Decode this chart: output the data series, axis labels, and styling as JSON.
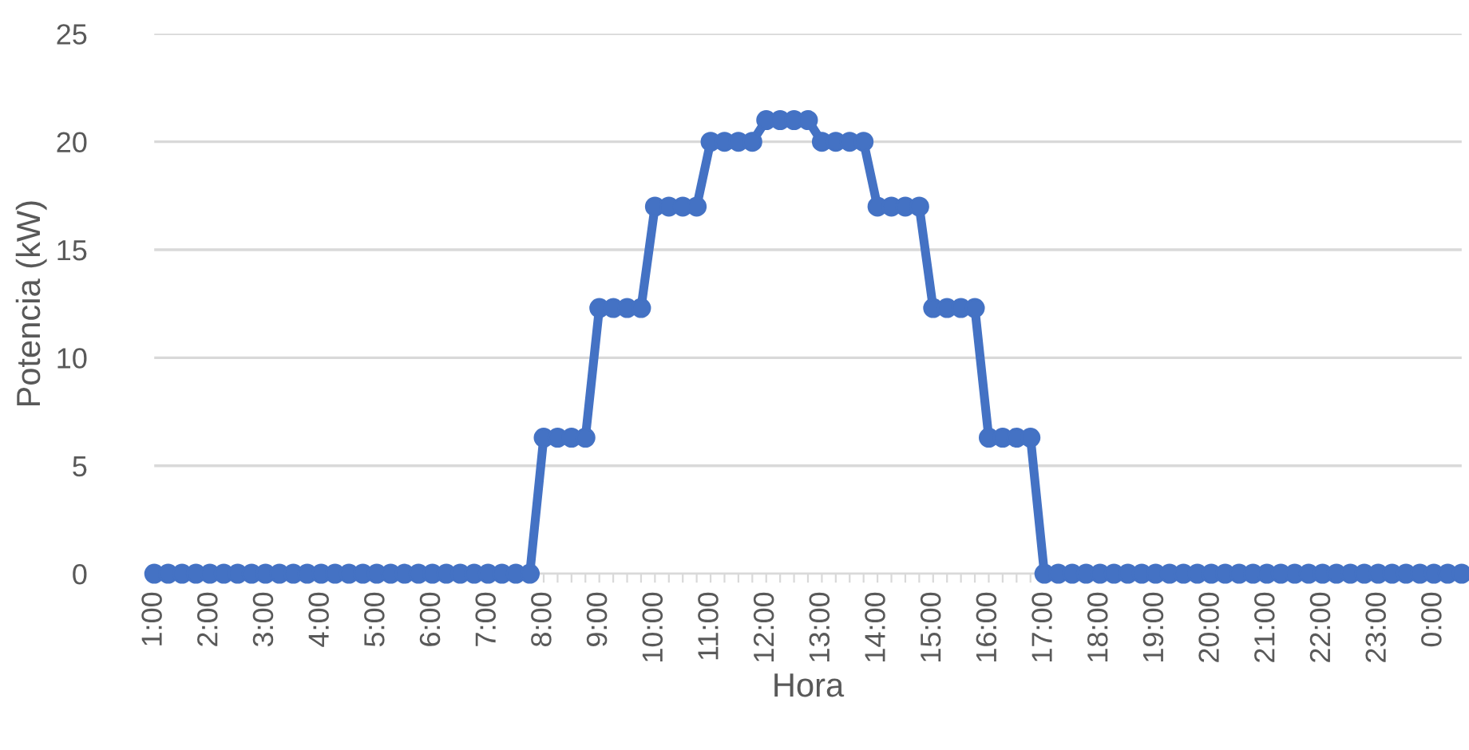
{
  "chart_data": {
    "type": "line",
    "xlabel": "Hora",
    "ylabel": "Potencia (kW)",
    "categories": [
      "1:00",
      null,
      null,
      null,
      "2:00",
      null,
      null,
      null,
      "3:00",
      null,
      null,
      null,
      "4:00",
      null,
      null,
      null,
      "5:00",
      null,
      null,
      null,
      "6:00",
      null,
      null,
      null,
      "7:00",
      null,
      null,
      null,
      "8:00",
      null,
      null,
      null,
      "9:00",
      null,
      null,
      null,
      "10:00",
      null,
      null,
      null,
      "11:00",
      null,
      null,
      null,
      "12:00",
      null,
      null,
      null,
      "13:00",
      null,
      null,
      null,
      "14:00",
      null,
      null,
      null,
      "15:00",
      null,
      null,
      null,
      "16:00",
      null,
      null,
      null,
      "17:00",
      null,
      null,
      null,
      "18:00",
      null,
      null,
      null,
      "19:00",
      null,
      null,
      null,
      "20:00",
      null,
      null,
      null,
      "21:00",
      null,
      null,
      null,
      "22:00",
      null,
      null,
      null,
      "23:00",
      null,
      null,
      null,
      "0:00",
      null,
      null
    ],
    "series": [
      {
        "color": "#4472c4",
        "values": [
          0,
          0,
          0,
          0,
          0,
          0,
          0,
          0,
          0,
          0,
          0,
          0,
          0,
          0,
          0,
          0,
          0,
          0,
          0,
          0,
          0,
          0,
          0,
          0,
          0,
          0,
          0,
          0,
          6.3,
          6.3,
          6.3,
          6.3,
          12.3,
          12.3,
          12.3,
          12.3,
          17,
          17,
          17,
          17,
          20,
          20,
          20,
          20,
          21,
          21,
          21,
          21,
          20,
          20,
          20,
          20,
          17,
          17,
          17,
          17,
          12.3,
          12.3,
          12.3,
          12.3,
          6.3,
          6.3,
          6.3,
          6.3,
          0,
          0,
          0,
          0,
          0,
          0,
          0,
          0,
          0,
          0,
          0,
          0,
          0,
          0,
          0,
          0,
          0,
          0,
          0,
          0,
          0,
          0,
          0,
          0,
          0,
          0,
          0,
          0,
          0,
          0,
          0
        ]
      }
    ],
    "ylim": [
      0,
      25
    ],
    "yticks": [
      0,
      5,
      10,
      15,
      20,
      25
    ],
    "grid": "y",
    "marker": "circle",
    "line_style": "solid"
  }
}
